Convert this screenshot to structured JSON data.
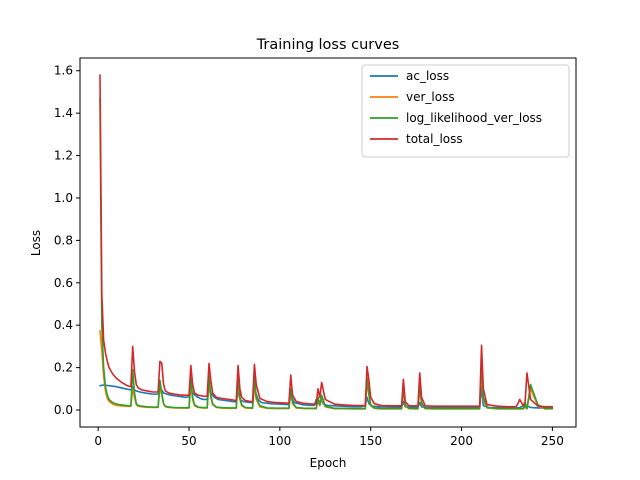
{
  "chart_data": {
    "type": "line",
    "title": "Training loss curves",
    "xlabel": "Epoch",
    "ylabel": "Loss",
    "xlim": [
      -10,
      263
    ],
    "ylim": [
      -0.08,
      1.66
    ],
    "xticks": [
      0,
      50,
      100,
      150,
      200,
      250
    ],
    "yticks": [
      0.0,
      0.2,
      0.4,
      0.6,
      0.8,
      1.0,
      1.2,
      1.4,
      1.6
    ],
    "legend_position": "top-right",
    "grid": false,
    "series": [
      {
        "name": "ac_loss",
        "color": "#1f77b4",
        "x": [
          1,
          3,
          6,
          10,
          15,
          18,
          19,
          20,
          21,
          23,
          26,
          30,
          33,
          34,
          35,
          36,
          38,
          40,
          44,
          48,
          50,
          51,
          52,
          54,
          56,
          58,
          60,
          61,
          62,
          64,
          66,
          70,
          74,
          76,
          77,
          78,
          80,
          84,
          85,
          86,
          88,
          90,
          95,
          100,
          104,
          105,
          106,
          108,
          112,
          116,
          119,
          120,
          121,
          122,
          123,
          124,
          126,
          130,
          135,
          140,
          145,
          147,
          148,
          149,
          151,
          155,
          160,
          165,
          167,
          168,
          169,
          171,
          174,
          176,
          177,
          178,
          180,
          185,
          190,
          195,
          200,
          205,
          209,
          210,
          211,
          212,
          215,
          220,
          225,
          230,
          232,
          234,
          235,
          236,
          238,
          242,
          246,
          250
        ],
        "values": [
          0.115,
          0.118,
          0.115,
          0.11,
          0.1,
          0.095,
          0.11,
          0.095,
          0.09,
          0.085,
          0.08,
          0.075,
          0.075,
          0.1,
          0.095,
          0.08,
          0.075,
          0.07,
          0.065,
          0.06,
          0.062,
          0.11,
          0.08,
          0.065,
          0.055,
          0.05,
          0.05,
          0.1,
          0.08,
          0.06,
          0.05,
          0.045,
          0.04,
          0.038,
          0.09,
          0.05,
          0.04,
          0.035,
          0.035,
          0.1,
          0.05,
          0.035,
          0.03,
          0.028,
          0.026,
          0.026,
          0.07,
          0.035,
          0.026,
          0.022,
          0.022,
          0.05,
          0.03,
          0.04,
          0.045,
          0.028,
          0.022,
          0.02,
          0.018,
          0.016,
          0.016,
          0.02,
          0.06,
          0.03,
          0.018,
          0.015,
          0.014,
          0.013,
          0.013,
          0.04,
          0.015,
          0.013,
          0.013,
          0.013,
          0.035,
          0.015,
          0.012,
          0.012,
          0.012,
          0.012,
          0.012,
          0.012,
          0.012,
          0.012,
          0.11,
          0.02,
          0.012,
          0.011,
          0.011,
          0.01,
          0.012,
          0.02,
          0.01,
          0.02,
          0.012,
          0.01,
          0.01,
          0.01
        ]
      },
      {
        "name": "ver_loss",
        "color": "#ff7f0e",
        "x": [
          1,
          2,
          3,
          4,
          5,
          6,
          8,
          10,
          12,
          15,
          18,
          19,
          20,
          21,
          22,
          24,
          27,
          30,
          33,
          34,
          35,
          36,
          37,
          39,
          42,
          46,
          50,
          51,
          52,
          53,
          55,
          58,
          60,
          61,
          62,
          63,
          65,
          68,
          72,
          76,
          77,
          78,
          79,
          81,
          84,
          85,
          86,
          87,
          89,
          93,
          98,
          103,
          105,
          106,
          107,
          109,
          113,
          118,
          120,
          121,
          122,
          123,
          125,
          130,
          135,
          140,
          145,
          147,
          148,
          149,
          150,
          152,
          156,
          162,
          166,
          167,
          168,
          169,
          171,
          175,
          176,
          177,
          178,
          180,
          185,
          190,
          195,
          200,
          205,
          209,
          210,
          211,
          212,
          214,
          220,
          225,
          230,
          232,
          234,
          235,
          236,
          238,
          242,
          246,
          250
        ],
        "values": [
          0.375,
          0.28,
          0.16,
          0.09,
          0.055,
          0.04,
          0.028,
          0.022,
          0.02,
          0.018,
          0.017,
          0.1,
          0.06,
          0.025,
          0.018,
          0.015,
          0.013,
          0.012,
          0.012,
          0.11,
          0.07,
          0.03,
          0.015,
          0.012,
          0.01,
          0.009,
          0.009,
          0.12,
          0.05,
          0.02,
          0.012,
          0.009,
          0.009,
          0.13,
          0.06,
          0.025,
          0.012,
          0.009,
          0.008,
          0.008,
          0.13,
          0.05,
          0.02,
          0.01,
          0.008,
          0.008,
          0.12,
          0.05,
          0.015,
          0.008,
          0.007,
          0.007,
          0.007,
          0.09,
          0.03,
          0.01,
          0.007,
          0.006,
          0.006,
          0.05,
          0.02,
          0.06,
          0.015,
          0.006,
          0.006,
          0.005,
          0.005,
          0.005,
          0.13,
          0.07,
          0.02,
          0.008,
          0.005,
          0.005,
          0.005,
          0.005,
          0.1,
          0.02,
          0.006,
          0.005,
          0.005,
          0.1,
          0.03,
          0.006,
          0.005,
          0.005,
          0.005,
          0.005,
          0.005,
          0.005,
          0.005,
          0.2,
          0.05,
          0.01,
          0.005,
          0.005,
          0.005,
          0.005,
          0.005,
          0.03,
          0.005,
          0.1,
          0.02,
          0.005,
          0.005
        ]
      },
      {
        "name": "log_likelihood_ver_loss",
        "color": "#2ca02c",
        "x": [
          1,
          2,
          3,
          4,
          5,
          6,
          8,
          10,
          12,
          15,
          18,
          19,
          20,
          21,
          22,
          24,
          27,
          30,
          33,
          34,
          35,
          36,
          37,
          39,
          42,
          46,
          50,
          51,
          52,
          53,
          55,
          58,
          60,
          61,
          62,
          63,
          65,
          68,
          72,
          76,
          77,
          78,
          79,
          81,
          84,
          85,
          86,
          87,
          89,
          93,
          98,
          103,
          105,
          106,
          107,
          109,
          113,
          118,
          120,
          121,
          122,
          123,
          125,
          130,
          135,
          140,
          145,
          147,
          148,
          149,
          150,
          152,
          156,
          162,
          166,
          167,
          168,
          169,
          171,
          175,
          176,
          177,
          178,
          180,
          185,
          190,
          195,
          200,
          205,
          209,
          210,
          211,
          212,
          214,
          220,
          225,
          230,
          232,
          234,
          235,
          236,
          238,
          242,
          246,
          250
        ],
        "values": [
          1.47,
          0.4,
          0.2,
          0.11,
          0.07,
          0.05,
          0.035,
          0.028,
          0.025,
          0.022,
          0.02,
          0.19,
          0.08,
          0.03,
          0.022,
          0.018,
          0.015,
          0.014,
          0.014,
          0.14,
          0.08,
          0.03,
          0.018,
          0.014,
          0.012,
          0.011,
          0.011,
          0.15,
          0.06,
          0.025,
          0.014,
          0.011,
          0.011,
          0.16,
          0.07,
          0.03,
          0.014,
          0.011,
          0.01,
          0.01,
          0.16,
          0.06,
          0.025,
          0.012,
          0.01,
          0.01,
          0.16,
          0.06,
          0.02,
          0.01,
          0.009,
          0.009,
          0.009,
          0.1,
          0.035,
          0.012,
          0.009,
          0.008,
          0.008,
          0.06,
          0.025,
          0.07,
          0.018,
          0.008,
          0.008,
          0.007,
          0.007,
          0.007,
          0.15,
          0.08,
          0.025,
          0.01,
          0.007,
          0.007,
          0.007,
          0.007,
          0.11,
          0.025,
          0.008,
          0.007,
          0.007,
          0.12,
          0.035,
          0.008,
          0.007,
          0.007,
          0.007,
          0.007,
          0.007,
          0.007,
          0.007,
          0.24,
          0.06,
          0.012,
          0.007,
          0.007,
          0.007,
          0.007,
          0.007,
          0.035,
          0.007,
          0.12,
          0.025,
          0.007,
          0.007
        ]
      },
      {
        "name": "total_loss",
        "color": "#d62728",
        "x": [
          1,
          2,
          3,
          4,
          5,
          6,
          8,
          10,
          13,
          16,
          18,
          19,
          20,
          21,
          22,
          24,
          27,
          30,
          33,
          34,
          35,
          36,
          37,
          39,
          42,
          46,
          50,
          51,
          52,
          53,
          55,
          58,
          60,
          61,
          62,
          63,
          65,
          68,
          72,
          76,
          77,
          78,
          79,
          81,
          84,
          85,
          86,
          87,
          89,
          93,
          98,
          103,
          105,
          106,
          107,
          109,
          113,
          118,
          120,
          121,
          122,
          123,
          125,
          130,
          135,
          140,
          145,
          147,
          148,
          149,
          150,
          152,
          156,
          162,
          166,
          167,
          168,
          169,
          171,
          175,
          176,
          177,
          178,
          180,
          185,
          190,
          195,
          200,
          205,
          209,
          210,
          211,
          212,
          214,
          220,
          225,
          230,
          231,
          232,
          234,
          235,
          236,
          238,
          242,
          246,
          250
        ],
        "values": [
          1.58,
          0.55,
          0.33,
          0.27,
          0.23,
          0.2,
          0.17,
          0.15,
          0.13,
          0.115,
          0.11,
          0.3,
          0.18,
          0.12,
          0.105,
          0.095,
          0.09,
          0.085,
          0.085,
          0.23,
          0.22,
          0.12,
          0.09,
          0.08,
          0.075,
          0.07,
          0.07,
          0.21,
          0.12,
          0.08,
          0.07,
          0.065,
          0.065,
          0.22,
          0.14,
          0.08,
          0.06,
          0.055,
          0.05,
          0.045,
          0.21,
          0.1,
          0.06,
          0.045,
          0.04,
          0.04,
          0.215,
          0.12,
          0.055,
          0.04,
          0.035,
          0.033,
          0.033,
          0.165,
          0.07,
          0.04,
          0.032,
          0.028,
          0.028,
          0.1,
          0.06,
          0.13,
          0.05,
          0.028,
          0.024,
          0.022,
          0.021,
          0.022,
          0.205,
          0.14,
          0.06,
          0.03,
          0.021,
          0.02,
          0.02,
          0.02,
          0.145,
          0.04,
          0.02,
          0.02,
          0.02,
          0.175,
          0.06,
          0.02,
          0.018,
          0.018,
          0.018,
          0.018,
          0.018,
          0.018,
          0.02,
          0.305,
          0.1,
          0.025,
          0.018,
          0.016,
          0.016,
          0.03,
          0.05,
          0.02,
          0.04,
          0.175,
          0.05,
          0.018,
          0.016,
          0.016
        ]
      }
    ]
  }
}
